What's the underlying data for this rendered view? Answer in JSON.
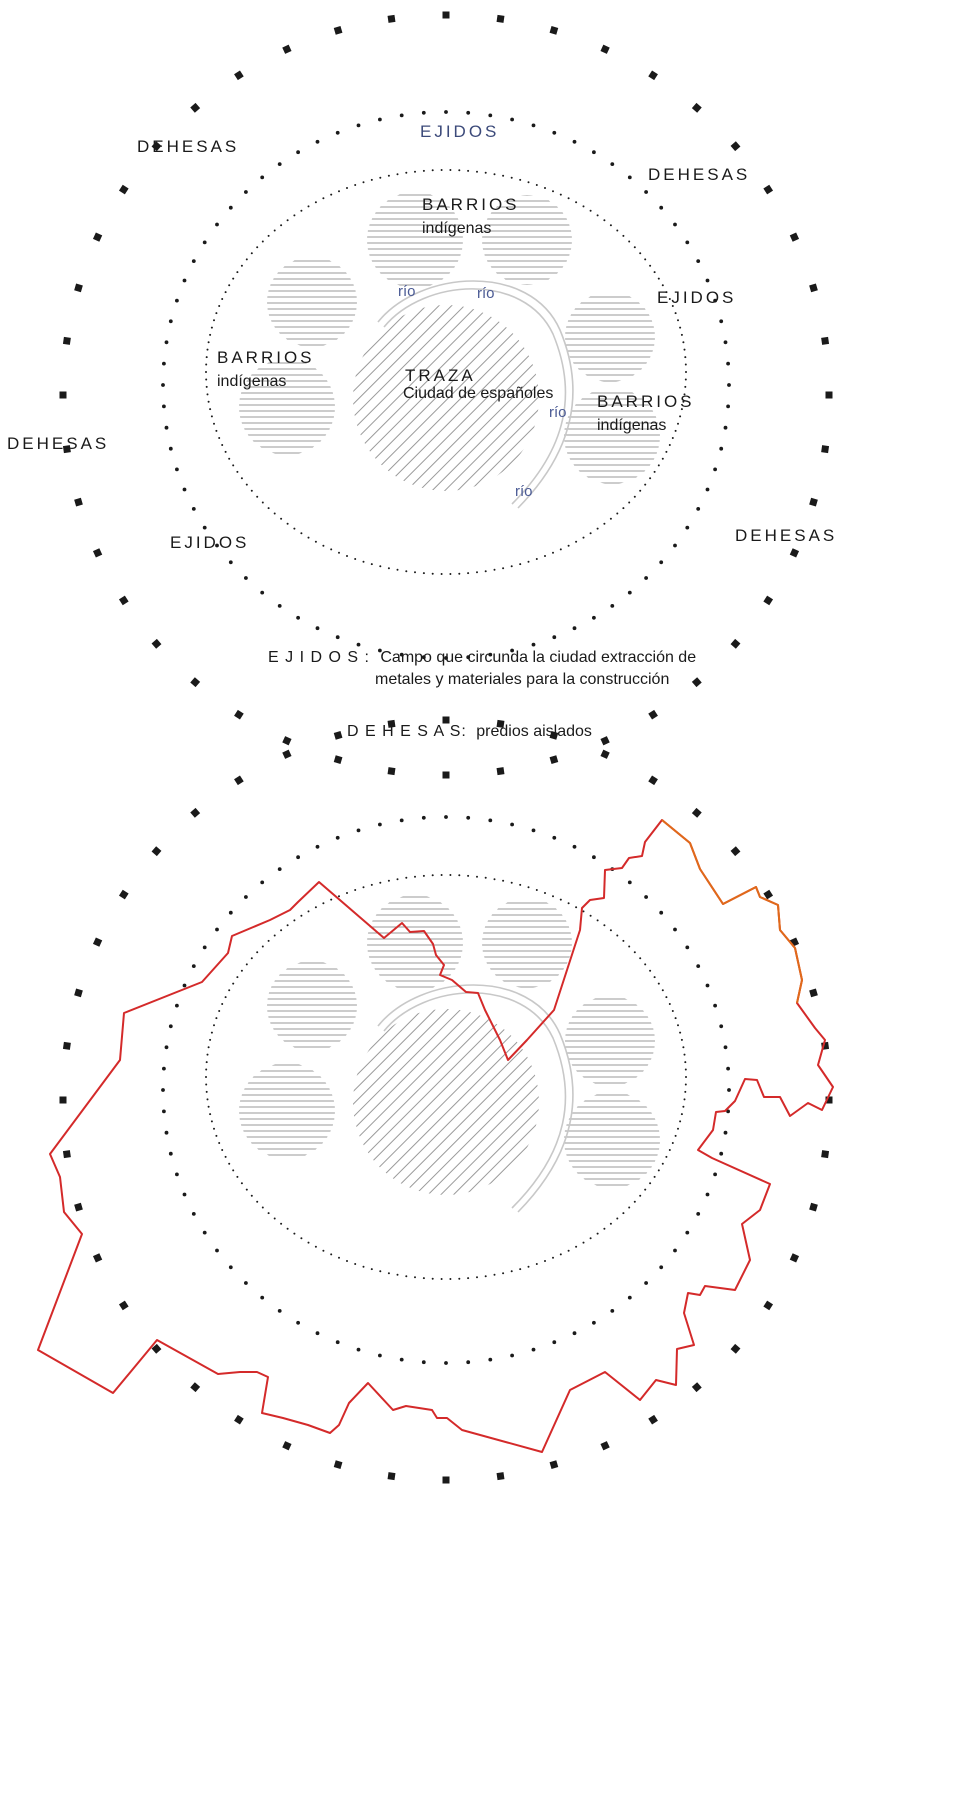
{
  "colors": {
    "river": "#c8c8c8",
    "hatch": "#9a9a9a",
    "boundary": "#d42a2a",
    "boundary_orange": "#e06a1a",
    "dots": "#1a1a1a",
    "ejidos_title": "#3c4a7a",
    "rio": "#4a5a94"
  },
  "top_diagram": {
    "labels": {
      "ejidos_top": "EJIDOS",
      "dehesas_top_left": "DEHESAS",
      "dehesas_top_right": "DEHESAS",
      "ejidos_right": "EJIDOS",
      "dehesas_left": "DEHESAS",
      "dehesas_right": "DEHESAS",
      "ejidos_bottom_left": "EJIDOS",
      "barrios_top": "BARRIOS",
      "indigenas_top": "indígenas",
      "barrios_left": "BARRIOS",
      "indigenas_left": "indígenas",
      "barrios_right": "BARRIOS",
      "indigenas_right": "indígenas",
      "traza": "TRAZA",
      "traza_sub": "Ciudad de españoles",
      "rio_1": "río",
      "rio_2": "río",
      "rio_3": "río",
      "rio_4": "río"
    },
    "caption_ejidos_term": "E J I D O S :",
    "caption_ejidos_line1": "Campo que circunda la ciudad extracción de",
    "caption_ejidos_line2": "metales y materiales para la construcción",
    "caption_dehesas_term": "D E H E S A S:",
    "caption_dehesas_text": "predios aislados"
  }
}
